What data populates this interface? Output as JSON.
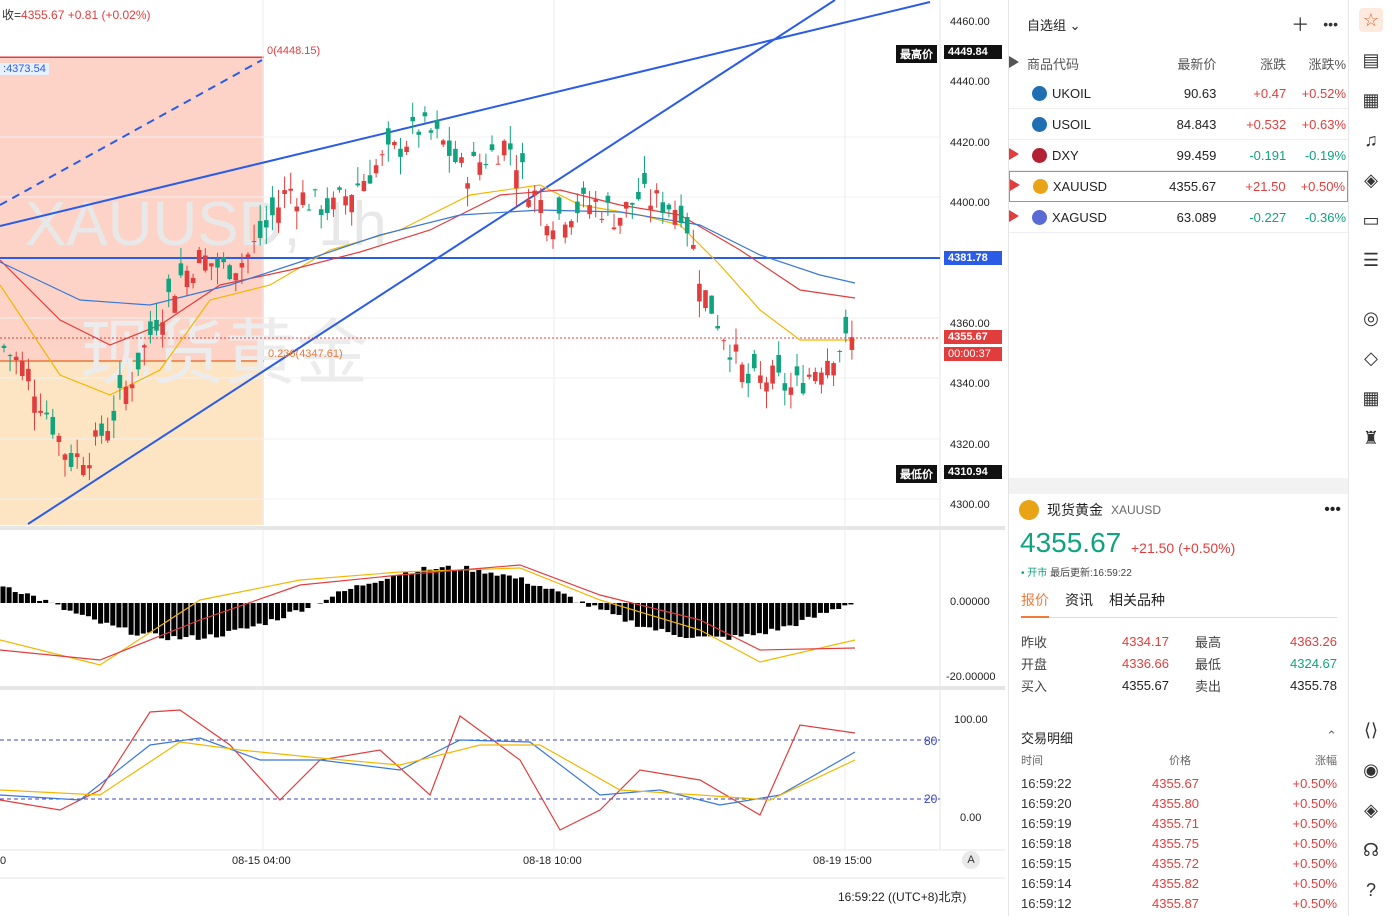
{
  "ohlc": {
    "prefix": "收=",
    "close": "4355.67",
    "change": "+0.81",
    "pct": "(+0.02%)"
  },
  "chart": {
    "watermark_symbol": "XAUUSD, 1h",
    "watermark_name": "现货黄金",
    "fib_top_label": "0(4448.15)",
    "fib_mid_label": "0.236(4347.61)",
    "fib_left_label": "4373.54",
    "price_axis": [
      "4460.00",
      "4440.00",
      "4420.00",
      "4400.00",
      "4360.00",
      "4340.00",
      "4320.00",
      "4300.00"
    ],
    "high_label": "最高价",
    "high_value": "4449.84",
    "low_label": "最低价",
    "low_value": "4310.94",
    "hline_value": "4381.78",
    "last_value": "4355.67",
    "countdown": "00:00:37",
    "macd_axis": [
      "0.00000",
      "-20.00000"
    ],
    "stoch_axis": [
      "100.00",
      "0.00"
    ],
    "stoch_levels": [
      "80",
      "20"
    ],
    "time_axis": [
      "0",
      "08-15 04:00",
      "08-18 10:00",
      "08-19 15:00"
    ],
    "clock": "16:59:22 ((UTC+8)北京)",
    "auto_btn": "A"
  },
  "watchlist": {
    "title": "自选组",
    "add_icon": "plus-icon",
    "more_icon": "more-icon",
    "columns": [
      "商品代码",
      "最新价",
      "涨跌",
      "涨跌%"
    ],
    "rows": [
      {
        "code": "UKOIL",
        "last": "90.63",
        "chg": "+0.47",
        "pct": "+0.52%",
        "dir": "up",
        "flag": false,
        "icon_color": "#1f6fb2"
      },
      {
        "code": "USOIL",
        "last": "84.843",
        "chg": "+0.532",
        "pct": "+0.63%",
        "dir": "up",
        "flag": false,
        "icon_color": "#1f6fb2"
      },
      {
        "code": "DXY",
        "last": "99.459",
        "chg": "-0.191",
        "pct": "-0.19%",
        "dir": "down",
        "flag": true,
        "icon_color": "#b22234"
      },
      {
        "code": "XAUUSD",
        "last": "4355.67",
        "chg": "+21.50",
        "pct": "+0.50%",
        "dir": "up",
        "flag": true,
        "icon_color": "#e8a317"
      },
      {
        "code": "XAGUSD",
        "last": "63.089",
        "chg": "-0.227",
        "pct": "-0.36%",
        "dir": "down",
        "flag": true,
        "icon_color": "#5b6bd6"
      }
    ]
  },
  "quote": {
    "name": "现货黄金",
    "symbol": "XAUUSD",
    "price": "4355.67",
    "change": "+21.50 (+0.50%)",
    "status": "• 开市",
    "updated": "最后更新:16:59:22",
    "tabs": [
      "报价",
      "资讯",
      "相关品种"
    ],
    "stats": [
      [
        "昨收",
        "4334.17",
        "最高",
        "4363.26"
      ],
      [
        "开盘",
        "4336.66",
        "最低",
        "4324.67"
      ],
      [
        "买入",
        "4355.67",
        "卖出",
        "4355.78"
      ]
    ]
  },
  "trades": {
    "title": "交易明细",
    "columns": [
      "时间",
      "价格",
      "涨幅"
    ],
    "rows": [
      [
        "16:59:22",
        "4355.67",
        "+0.50%"
      ],
      [
        "16:59:20",
        "4355.80",
        "+0.50%"
      ],
      [
        "16:59:19",
        "4355.71",
        "+0.50%"
      ],
      [
        "16:59:18",
        "4355.75",
        "+0.50%"
      ],
      [
        "16:59:15",
        "4355.72",
        "+0.50%"
      ],
      [
        "16:59:14",
        "4355.82",
        "+0.50%"
      ],
      [
        "16:59:12",
        "4355.87",
        "+0.50%"
      ]
    ]
  },
  "colors": {
    "up": "#e23d3d",
    "down": "#10a37f",
    "accent": "#f07a3a",
    "line": "#2b5ce6"
  },
  "toolbar_icons": [
    "watchlist-icon",
    "document-icon",
    "calendar-icon",
    "alert-icon",
    "layers-icon",
    "video-icon",
    "chat-icon",
    "target-icon",
    "education-icon",
    "grid-icon",
    "community-icon",
    "code-icon",
    "eye-icon",
    "diamond-icon",
    "headset-icon",
    "help-icon"
  ]
}
